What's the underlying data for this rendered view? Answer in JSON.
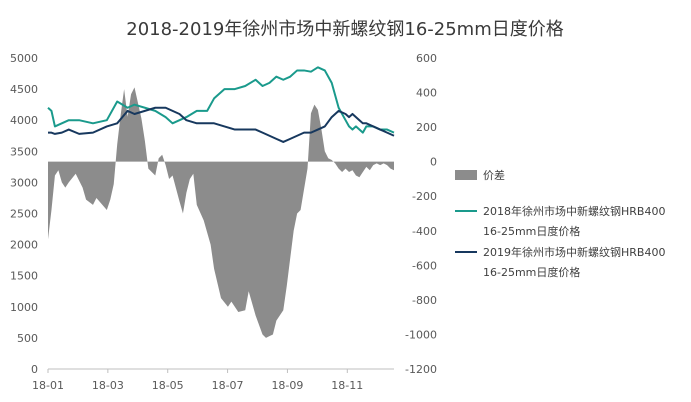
{
  "chart_data": {
    "type": "line",
    "title": "2018-2019年徐州市场中新螺纹钢16-25mm日度价格",
    "x_tick_labels": [
      "18-01",
      "18-03",
      "18-05",
      "18-07",
      "18-09",
      "18-11"
    ],
    "y_left": {
      "lim": [
        0,
        5000
      ],
      "ticks": [
        "0",
        "500",
        "1000",
        "1500",
        "2000",
        "2500",
        "3000",
        "3500",
        "4000",
        "4500",
        "5000"
      ]
    },
    "y_right": {
      "lim": [
        -1200,
        600
      ],
      "ticks": [
        "-1200",
        "-1000",
        "-800",
        "-600",
        "-400",
        "-200",
        "0",
        "200",
        "400",
        "600"
      ]
    },
    "grid": false,
    "legend_position": "right",
    "series": [
      {
        "name": "价差",
        "kind": "area",
        "axis": "right",
        "color": "#8c8c8c",
        "x": [
          0,
          1,
          2,
          3,
          4,
          5,
          6,
          8,
          10,
          11,
          13,
          14,
          17,
          18,
          19,
          20,
          21,
          22,
          23,
          24,
          25,
          27,
          28,
          29,
          31,
          32,
          33,
          34,
          35,
          36,
          38,
          39,
          40,
          41,
          42,
          43,
          45,
          47,
          48,
          50,
          52,
          53,
          55,
          57,
          58,
          60,
          62,
          63,
          64,
          65,
          66,
          68,
          69,
          70,
          71,
          72,
          73,
          74,
          75,
          76,
          77,
          78,
          79,
          80,
          81,
          82,
          83,
          84,
          85,
          86,
          87,
          88,
          89,
          90,
          91,
          92,
          93,
          94,
          95,
          96,
          97,
          98,
          99,
          100
        ],
        "values": [
          -450,
          -280,
          -80,
          -50,
          -120,
          -150,
          -120,
          -70,
          -150,
          -220,
          -250,
          -210,
          -280,
          -220,
          -130,
          100,
          270,
          420,
          260,
          390,
          430,
          250,
          120,
          -40,
          -80,
          20,
          40,
          -20,
          -100,
          -80,
          -230,
          -300,
          -180,
          -100,
          -70,
          -250,
          -340,
          -480,
          -620,
          -790,
          -840,
          -810,
          -870,
          -860,
          -750,
          -890,
          -1000,
          -1020,
          -1010,
          -1000,
          -920,
          -860,
          -720,
          -560,
          -400,
          -300,
          -280,
          -160,
          -40,
          280,
          330,
          300,
          190,
          60,
          20,
          10,
          -10,
          -40,
          -60,
          -40,
          -60,
          -50,
          -80,
          -90,
          -60,
          -30,
          -50,
          -20,
          -10,
          -20,
          -10,
          -20,
          -40,
          -50
        ],
        "legend_label": "价差"
      },
      {
        "name": "2018年徐州市场中新螺纹钢HRB400 16-25mm日度价格",
        "kind": "line",
        "axis": "left",
        "color": "#1a9a8c",
        "x": [
          0,
          1,
          2,
          4,
          6,
          9,
          13,
          17,
          20,
          23,
          25,
          28,
          31,
          34,
          36,
          38,
          40,
          43,
          46,
          48,
          51,
          54,
          57,
          60,
          62,
          64,
          66,
          68,
          70,
          72,
          74,
          76,
          78,
          80,
          82,
          84,
          86,
          87,
          88,
          89,
          90,
          91,
          92,
          94,
          96,
          98,
          100
        ],
        "values": [
          4200,
          4150,
          3900,
          3950,
          4000,
          4000,
          3950,
          4000,
          4300,
          4200,
          4250,
          4200,
          4150,
          4050,
          3950,
          4000,
          4050,
          4150,
          4150,
          4350,
          4500,
          4500,
          4550,
          4650,
          4550,
          4600,
          4700,
          4650,
          4700,
          4800,
          4800,
          4780,
          4850,
          4800,
          4600,
          4200,
          4000,
          3900,
          3850,
          3900,
          3850,
          3800,
          3900,
          3900,
          3850,
          3850,
          3800
        ],
        "legend_label": "2018年徐州市场中新螺纹钢HRB400\n16-25mm日度价格"
      },
      {
        "name": "2019年徐州市场中新螺纹钢HRB400 16-25mm日度价格",
        "kind": "line",
        "axis": "left",
        "color": "#17385e",
        "x": [
          0,
          1,
          2,
          4,
          6,
          9,
          13,
          17,
          20,
          23,
          25,
          28,
          31,
          34,
          36,
          38,
          40,
          43,
          46,
          48,
          51,
          54,
          57,
          60,
          62,
          64,
          66,
          68,
          70,
          72,
          74,
          76,
          78,
          80,
          82,
          84,
          86,
          87,
          88,
          89,
          90,
          91,
          92,
          94,
          96,
          98,
          100
        ],
        "values": [
          3800,
          3800,
          3780,
          3800,
          3850,
          3780,
          3800,
          3900,
          3950,
          4150,
          4100,
          4150,
          4200,
          4200,
          4150,
          4100,
          4000,
          3950,
          3950,
          3950,
          3900,
          3850,
          3850,
          3850,
          3800,
          3750,
          3700,
          3650,
          3700,
          3750,
          3800,
          3800,
          3850,
          3900,
          4050,
          4150,
          4100,
          4050,
          4100,
          4050,
          4000,
          3950,
          3950,
          3900,
          3850,
          3800,
          3750
        ],
        "legend_label": "2019年徐州市场中新螺纹钢HRB400\n16-25mm日度价格"
      }
    ]
  }
}
